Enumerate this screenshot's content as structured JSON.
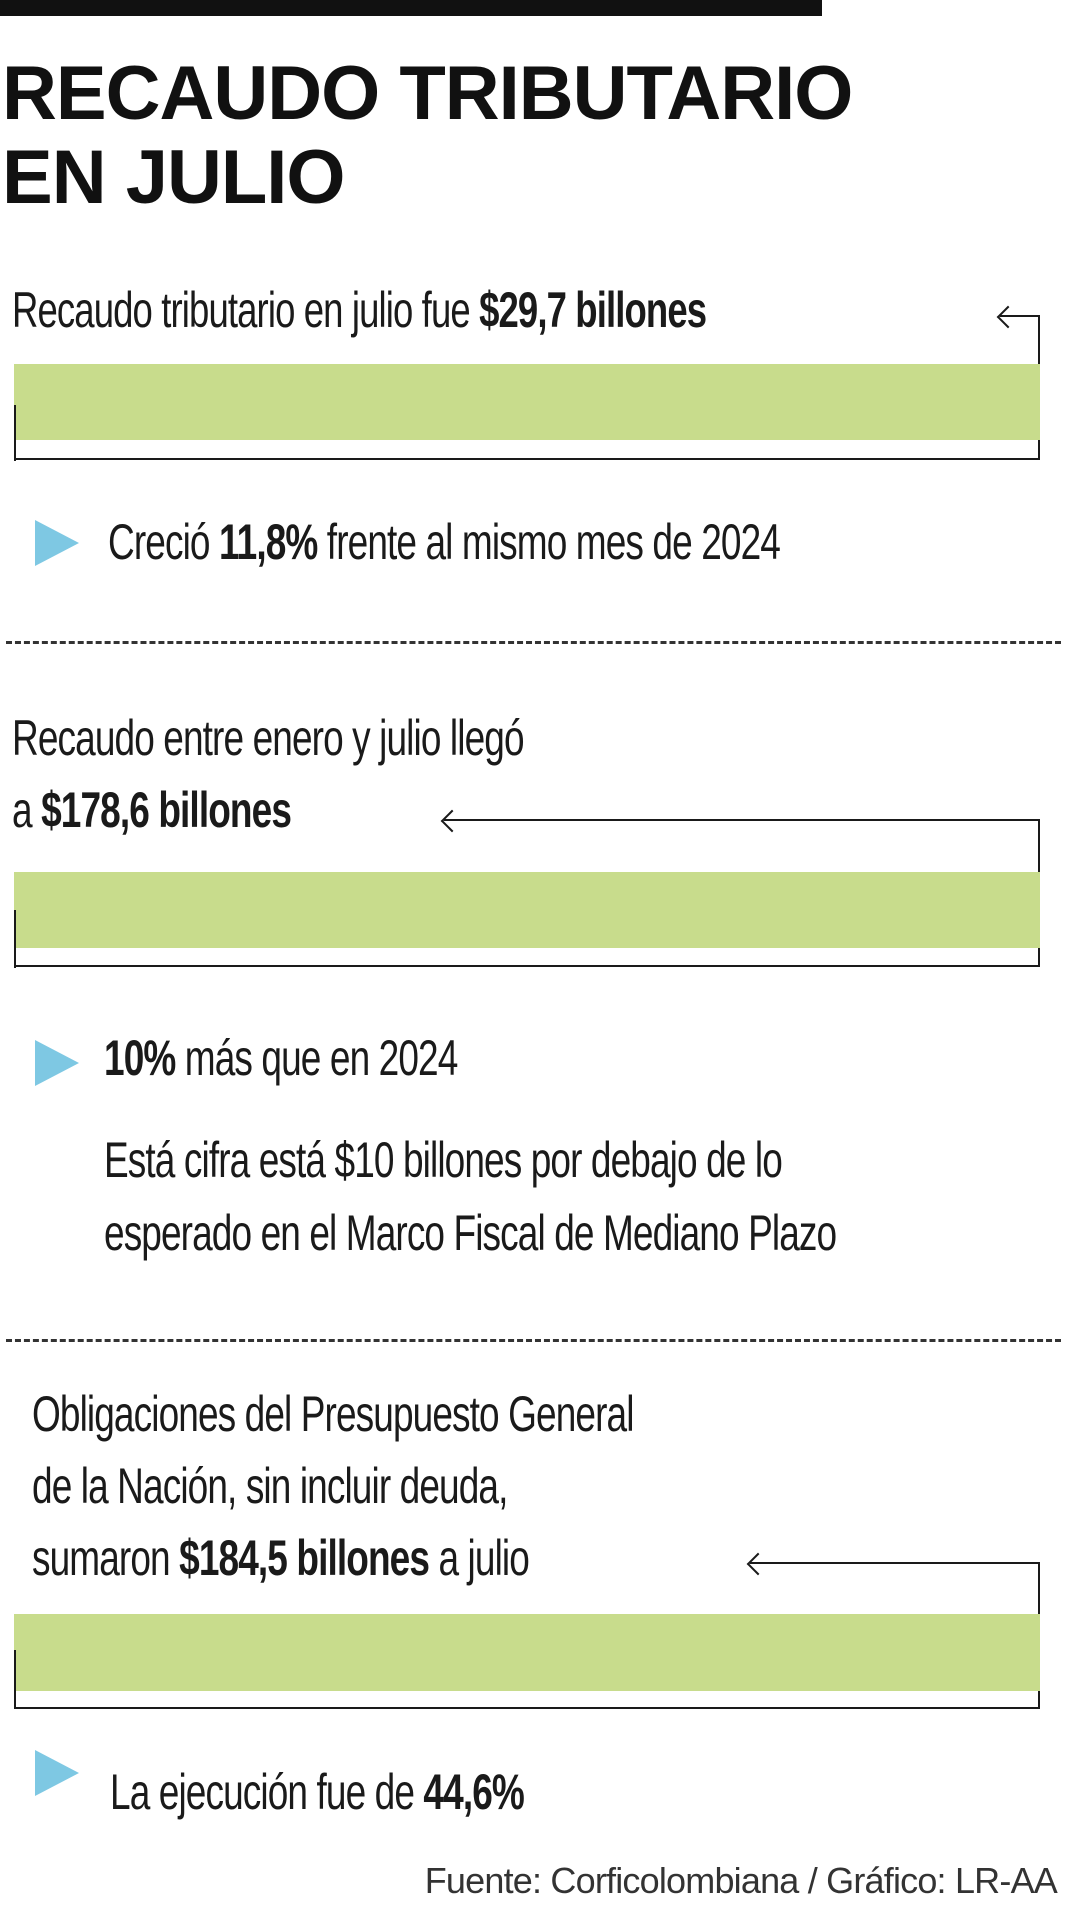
{
  "title": {
    "line1": "RECAUDO TRIBUTARIO",
    "line2": "EN JULIO"
  },
  "block1": {
    "text": "Recaudo tributario en julio fue ",
    "amount": "$29,7 billones",
    "bullet": {
      "prefix": "Creció ",
      "value": "11,8%",
      "suffix": " frente al mismo mes de 2024"
    }
  },
  "block2": {
    "line1": "Recaudo entre enero y julio llegó",
    "line2_prefix": "a ",
    "amount": "$178,6 billones",
    "bullet": {
      "value": "10%",
      "suffix": " más que en 2024"
    },
    "note_line1": "Está cifra está $10 billones por debajo de lo",
    "note_line2": "esperado en el Marco Fiscal de Mediano Plazo"
  },
  "block3": {
    "line1": "Obligaciones del Presupuesto General",
    "line2": "de la Nación, sin incluir deuda,",
    "line3_prefix": "sumaron ",
    "amount": "$184,5 billones",
    "line3_suffix": " a julio",
    "bullet": {
      "prefix": "La ejecución fue de ",
      "value": "44,6%"
    }
  },
  "source": "Fuente: Corficolombiana / Gráfico: LR-AA",
  "colors": {
    "bar": "#c8dc8c",
    "bullet": "#7ec8e3",
    "text": "#1a1a1a"
  }
}
